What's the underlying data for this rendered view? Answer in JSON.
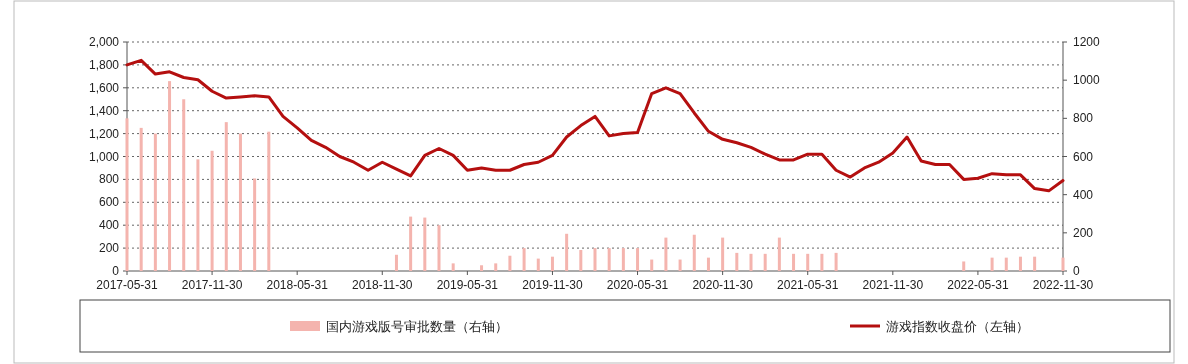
{
  "chart_data": {
    "type": "line",
    "categories": [
      "2017-05-31",
      null,
      null,
      null,
      null,
      null,
      "2017-11-30",
      null,
      null,
      null,
      null,
      null,
      "2018-05-31",
      null,
      null,
      null,
      null,
      null,
      "2018-11-30",
      null,
      null,
      null,
      null,
      null,
      "2019-05-31",
      null,
      null,
      null,
      null,
      null,
      "2019-11-30",
      null,
      null,
      null,
      null,
      null,
      "2020-05-31",
      null,
      null,
      null,
      null,
      null,
      "2020-11-30",
      null,
      null,
      null,
      null,
      null,
      "2021-05-31",
      null,
      null,
      null,
      null,
      null,
      "2021-11-30",
      null,
      null,
      null,
      null,
      null,
      "2022-05-31",
      null,
      null,
      null,
      null,
      null,
      "2022-11-30"
    ],
    "series": [
      {
        "name": "国内游戏版号审批数量（右轴）",
        "type": "bar",
        "axis": "y2",
        "color": "#f4b4ae",
        "values": [
          800,
          750,
          720,
          995,
          900,
          585,
          630,
          780,
          720,
          485,
          730,
          0,
          0,
          0,
          0,
          0,
          0,
          0,
          0,
          85,
          285,
          280,
          240,
          40,
          0,
          30,
          40,
          80,
          120,
          65,
          75,
          195,
          110,
          120,
          120,
          120,
          120,
          60,
          175,
          60,
          190,
          70,
          175,
          95,
          90,
          90,
          175,
          90,
          90,
          90,
          95,
          0,
          0,
          0,
          0,
          0,
          0,
          0,
          0,
          50,
          0,
          70,
          70,
          75,
          75,
          0,
          70
        ]
      },
      {
        "name": "游戏指数收盘价（左轴）",
        "color": "#b40f0f",
        "values": [
          1800,
          1840,
          1720,
          1740,
          1690,
          1670,
          1570,
          1510,
          1520,
          1530,
          1520,
          1350,
          1250,
          1140,
          1080,
          1000,
          950,
          880,
          950,
          890,
          830,
          1010,
          1070,
          1010,
          880,
          900,
          880,
          880,
          930,
          950,
          1010,
          1170,
          1270,
          1350,
          1180,
          1200,
          1210,
          1550,
          1600,
          1550,
          1380,
          1220,
          1150,
          1120,
          1080,
          1020,
          970,
          970,
          1020,
          1020,
          880,
          820,
          900,
          950,
          1030,
          1170,
          960,
          930,
          930,
          800,
          810,
          850,
          840,
          840,
          720,
          700,
          790
        ]
      }
    ],
    "ylim": [
      0,
      2000
    ],
    "yticks": [
      {
        "value": 0,
        "label": "0"
      },
      {
        "value": 200,
        "label": "200"
      },
      {
        "value": 400,
        "label": "400"
      },
      {
        "value": 600,
        "label": "600"
      },
      {
        "value": 800,
        "label": "800"
      },
      {
        "value": 1000,
        "label": "1,000"
      },
      {
        "value": 1200,
        "label": "1,200"
      },
      {
        "value": 1400,
        "label": "1,400"
      },
      {
        "value": 1600,
        "label": "1,600"
      },
      {
        "value": 1800,
        "label": "1,800"
      },
      {
        "value": 2000,
        "label": "2,000"
      }
    ],
    "y2lim": [
      0,
      1200
    ],
    "y2ticks": [
      0,
      200,
      400,
      600,
      800,
      1000,
      1200
    ],
    "grid": "y",
    "legend": "bottom"
  }
}
